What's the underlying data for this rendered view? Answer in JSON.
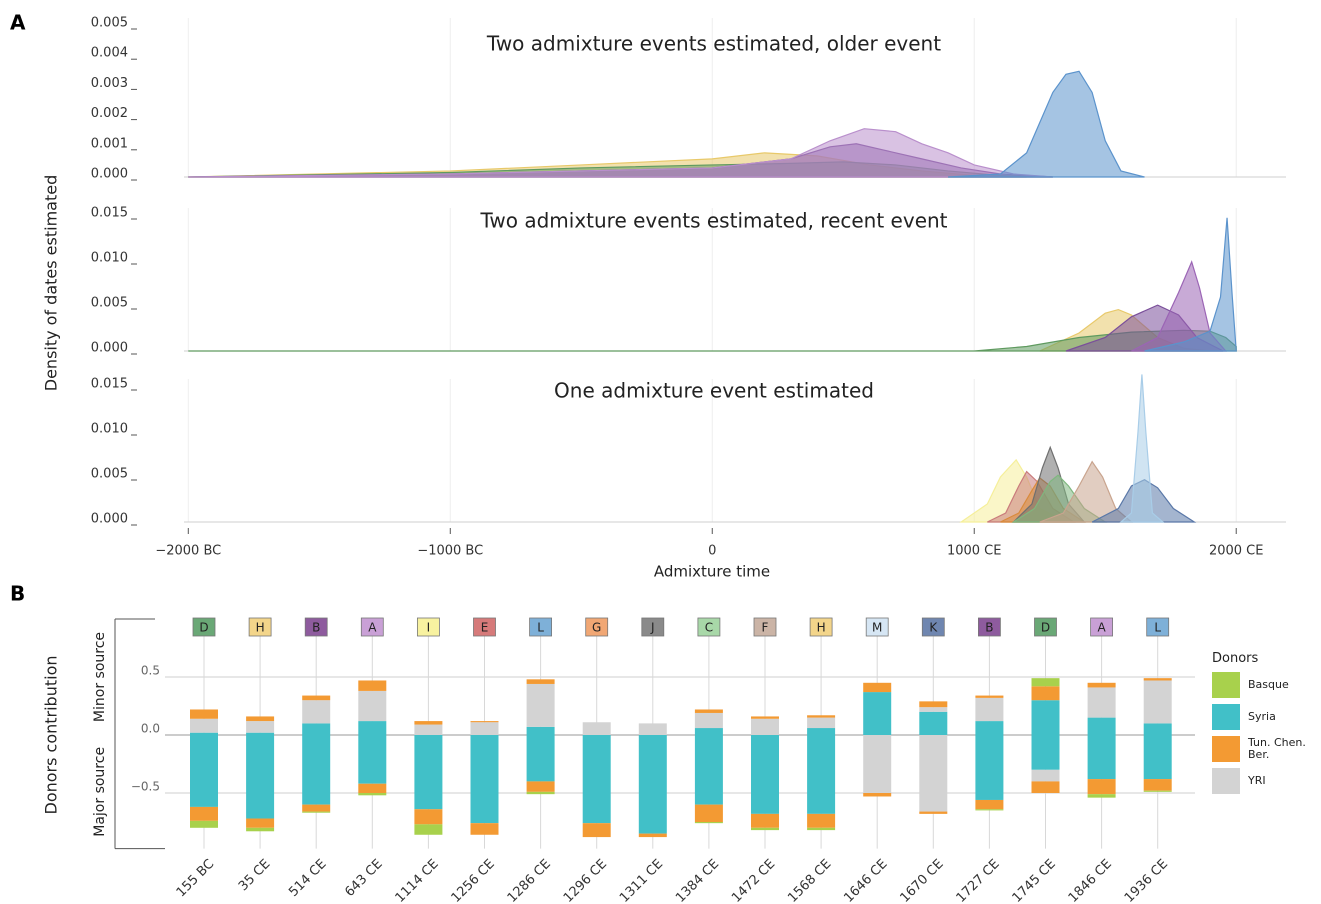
{
  "chart_data": [
    {
      "type": "density",
      "panel": "A",
      "ylabel": "Density of dates estimated",
      "title": "Two admixture events estimated, older event",
      "xlim": [
        -2150,
        2190
      ],
      "ylim": [
        0,
        0.005
      ],
      "yticks": [
        {
          "value": 0,
          "label": "0.000"
        },
        0.001,
        0.002,
        0.003,
        0.004,
        0.005
      ],
      "series": [
        {
          "color": "#e8c96a",
          "x": [
            -2000,
            -1000,
            -500,
            0,
            200,
            400,
            600,
            800,
            1000,
            1200
          ],
          "values": [
            0,
            0.0002,
            0.0004,
            0.0006,
            0.0008,
            0.0007,
            0.0004,
            0.0002,
            5e-05,
            0
          ]
        },
        {
          "color": "#5f9a5f",
          "x": [
            -2000,
            -1000,
            -500,
            0,
            300,
            500,
            700,
            900,
            1100,
            1300
          ],
          "values": [
            0,
            0.00015,
            0.0003,
            0.0004,
            0.00045,
            0.0005,
            0.0004,
            0.0002,
            5e-05,
            0
          ]
        },
        {
          "color": "#7a4f9a",
          "x": [
            -2000,
            -1000,
            0,
            300,
            450,
            550,
            650,
            800,
            950,
            1100,
            1300
          ],
          "values": [
            0,
            0.0001,
            0.0003,
            0.0006,
            0.001,
            0.0011,
            0.0009,
            0.0006,
            0.0003,
            0.0001,
            0
          ]
        },
        {
          "color": "#b98fcc",
          "x": [
            -2000,
            -1000,
            0,
            300,
            450,
            580,
            700,
            800,
            900,
            1000,
            1150,
            1300
          ],
          "values": [
            0,
            0.0001,
            0.0003,
            0.0006,
            0.0012,
            0.0016,
            0.0015,
            0.0011,
            0.0008,
            0.0004,
            0.0001,
            0
          ]
        },
        {
          "color": "#5b93cc",
          "x": [
            900,
            1100,
            1200,
            1300,
            1350,
            1400,
            1450,
            1500,
            1560,
            1650
          ],
          "values": [
            0,
            0.0001,
            0.0008,
            0.0028,
            0.0034,
            0.0035,
            0.0028,
            0.0012,
            0.0002,
            0
          ]
        }
      ]
    },
    {
      "type": "density",
      "title": "Two admixture events estimated, recent event",
      "xlim": [
        -2150,
        2190
      ],
      "ylim": [
        0,
        0.015
      ],
      "yticks": [
        {
          "value": 0,
          "label": "0.000"
        },
        0.005,
        {
          "value": 0.01,
          "label": "0.010"
        },
        0.015
      ],
      "series": [
        {
          "color": "#e8c96a",
          "x": [
            1250,
            1400,
            1500,
            1550,
            1600,
            1700,
            1800,
            1900
          ],
          "values": [
            0,
            0.002,
            0.0042,
            0.0046,
            0.004,
            0.0015,
            0.0003,
            0
          ]
        },
        {
          "color": "#5f9a5f",
          "x": [
            -2000,
            1000,
            1200,
            1400,
            1600,
            1800,
            1900,
            1960,
            2000
          ],
          "values": [
            0,
            0,
            0.0005,
            0.0015,
            0.0021,
            0.0023,
            0.0022,
            0.0015,
            0.0005
          ]
        },
        {
          "color": "#7a4f9a",
          "x": [
            1350,
            1500,
            1600,
            1700,
            1780,
            1850,
            1950
          ],
          "values": [
            0,
            0.0015,
            0.0038,
            0.0051,
            0.004,
            0.0015,
            0
          ]
        },
        {
          "color": "#9b65b5",
          "x": [
            1600,
            1700,
            1780,
            1830,
            1860,
            1900,
            1960
          ],
          "values": [
            0,
            0.0015,
            0.0065,
            0.0099,
            0.007,
            0.002,
            0
          ]
        },
        {
          "color": "#5b93cc",
          "x": [
            1650,
            1800,
            1900,
            1940,
            1965,
            1985,
            2000
          ],
          "values": [
            0,
            0.001,
            0.0022,
            0.006,
            0.0148,
            0.006,
            0
          ]
        }
      ]
    },
    {
      "type": "density",
      "title": "One admixture event estimated",
      "xlabel": "Admixture time",
      "xlim": [
        -2150,
        2190
      ],
      "ylim": [
        0,
        0.015
      ],
      "xticks": [
        {
          "value": -2000,
          "label": "−2000 BC"
        },
        {
          "value": -1000,
          "label": "−1000 BC"
        },
        0,
        {
          "value": 1000,
          "label": "1000 CE"
        },
        {
          "value": 2000,
          "label": "2000 CE"
        }
      ],
      "yticks": [
        {
          "value": 0,
          "label": "0.000"
        },
        0.005,
        {
          "value": 0.01,
          "label": "0.010"
        },
        0.015
      ],
      "series": [
        {
          "color": "#f5ef9a",
          "x": [
            950,
            1050,
            1100,
            1160,
            1200,
            1250,
            1350
          ],
          "values": [
            0,
            0.002,
            0.005,
            0.0069,
            0.005,
            0.0015,
            0
          ]
        },
        {
          "color": "#c97b7b",
          "x": [
            1050,
            1120,
            1170,
            1200,
            1240,
            1300,
            1380
          ],
          "values": [
            0,
            0.001,
            0.004,
            0.0056,
            0.0045,
            0.0015,
            0
          ]
        },
        {
          "color": "#d98a3c",
          "x": [
            1100,
            1170,
            1220,
            1250,
            1290,
            1340,
            1420
          ],
          "values": [
            0,
            0.001,
            0.0035,
            0.0049,
            0.004,
            0.0015,
            0
          ]
        },
        {
          "color": "#6f6f6f",
          "x": [
            1150,
            1220,
            1260,
            1290,
            1320,
            1360,
            1420
          ],
          "values": [
            0,
            0.002,
            0.006,
            0.0083,
            0.006,
            0.002,
            0
          ]
        },
        {
          "color": "#7fb77f",
          "x": [
            1150,
            1230,
            1290,
            1320,
            1360,
            1420,
            1500
          ],
          "values": [
            0,
            0.0015,
            0.0045,
            0.0052,
            0.004,
            0.0015,
            0
          ]
        },
        {
          "color": "#c9a48e",
          "x": [
            1250,
            1340,
            1400,
            1450,
            1490,
            1540,
            1600
          ],
          "values": [
            0,
            0.001,
            0.004,
            0.0067,
            0.005,
            0.0015,
            0
          ]
        },
        {
          "color": "#5a78a8",
          "x": [
            1450,
            1550,
            1600,
            1650,
            1700,
            1760,
            1840
          ],
          "values": [
            0,
            0.0015,
            0.004,
            0.0047,
            0.0038,
            0.0015,
            0
          ]
        },
        {
          "color": "#a9cde8",
          "x": [
            1560,
            1600,
            1625,
            1640,
            1655,
            1680,
            1720
          ],
          "values": [
            0,
            0.001,
            0.01,
            0.0164,
            0.01,
            0.001,
            0
          ]
        }
      ]
    },
    {
      "type": "stacked_bar",
      "panel": "B",
      "ylabel": "Donors contribution",
      "ylabel_upper": "Minor source",
      "ylabel_lower": "Major source",
      "categories": [
        "155 BC",
        "35 CE",
        "514 CE",
        "643 CE",
        "1114 CE",
        "1256 CE",
        "1286 CE",
        "1296 CE",
        "1311 CE",
        "1384 CE",
        "1472 CE",
        "1568 CE",
        "1646 CE",
        "1670 CE",
        "1727 CE",
        "1745 CE",
        "1846 CE",
        "1936 CE"
      ],
      "donors": [
        "D",
        "H",
        "B",
        "A",
        "I",
        "E",
        "L",
        "G",
        "J",
        "C",
        "F",
        "H",
        "M",
        "K",
        "B",
        "D",
        "A",
        "L"
      ],
      "donor_colors": [
        "#6aa876",
        "#f3d58a",
        "#8e5b9e",
        "#c9a0d6",
        "#f8f2a0",
        "#d67a7a",
        "#7eb0d8",
        "#f1a774",
        "#8a8a8a",
        "#a8d8a8",
        "#cbb4a6",
        "#f3d58a",
        "#d6e6f4",
        "#6f86b0",
        "#8e5b9e",
        "#6aa876",
        "#c9a0d6",
        "#7eb0d8"
      ],
      "ylim": [
        -0.98,
        1.0
      ],
      "yticks": [
        {
          "value": -0.5,
          "label": "−0.5"
        },
        {
          "value": 0,
          "label": "0.0"
        },
        0.5
      ],
      "grid": true,
      "legend_title": "Donors",
      "series": [
        {
          "name": "Basque",
          "color": "#a8d14c",
          "minor": [
            0,
            0,
            0,
            0,
            0,
            0,
            0,
            0,
            0,
            0,
            0,
            0,
            0,
            0,
            0,
            0.07,
            0,
            0
          ],
          "major": [
            -0.06,
            -0.03,
            -0.01,
            -0.02,
            -0.09,
            0,
            -0.02,
            0,
            0,
            -0.01,
            -0.02,
            -0.02,
            0,
            0,
            -0.01,
            0,
            -0.03,
            -0.01
          ]
        },
        {
          "name": "Syria",
          "color": "#41c0c8",
          "minor": [
            0.02,
            0.02,
            0.1,
            0.12,
            0,
            0,
            0.07,
            0,
            0,
            0.06,
            0,
            0.06,
            0.37,
            0.2,
            0.12,
            0.3,
            0.15,
            0.1
          ],
          "major": [
            -0.62,
            -0.72,
            -0.6,
            -0.42,
            -0.64,
            -0.76,
            -0.4,
            -0.76,
            -0.85,
            -0.6,
            -0.68,
            -0.68,
            0,
            0,
            -0.56,
            -0.3,
            -0.38,
            -0.38
          ]
        },
        {
          "name": "Tun. Chen. Ber.",
          "color": "#f39a33",
          "minor": [
            0.08,
            0.04,
            0.04,
            0.09,
            0.03,
            0.01,
            0.04,
            0,
            0,
            0.03,
            0.02,
            0.02,
            0.08,
            0.05,
            0.02,
            0.12,
            0.04,
            0.02
          ],
          "major": [
            -0.12,
            -0.08,
            -0.06,
            -0.08,
            -0.13,
            -0.1,
            -0.09,
            -0.12,
            -0.03,
            -0.15,
            -0.12,
            -0.12,
            -0.03,
            -0.02,
            -0.08,
            -0.1,
            -0.13,
            -0.1
          ]
        },
        {
          "name": "YRI",
          "color": "#d3d3d3",
          "minor": [
            0.12,
            0.1,
            0.2,
            0.26,
            0.09,
            0.11,
            0.37,
            0.11,
            0.1,
            0.13,
            0.14,
            0.09,
            0,
            0.04,
            0.2,
            0,
            0.26,
            0.37
          ],
          "major": [
            0,
            0,
            0,
            0,
            0,
            0,
            0,
            0,
            0,
            0,
            0,
            0,
            -0.5,
            -0.66,
            0,
            -0.1,
            0,
            0
          ]
        }
      ]
    }
  ]
}
